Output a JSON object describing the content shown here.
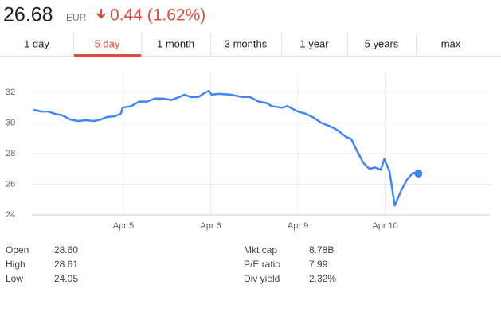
{
  "header": {
    "price": "26.68",
    "currency": "EUR",
    "change": "0.44 (1.62%)"
  },
  "tabs": {
    "items": [
      "1 day",
      "5 day",
      "1 month",
      "3 months",
      "1 year",
      "5 years",
      "max"
    ],
    "selected": 1
  },
  "chart_data": {
    "type": "line",
    "x": [
      -0.03,
      0.06,
      0.14,
      0.21,
      0.3,
      0.39,
      0.48,
      0.57,
      0.66,
      0.74,
      0.81,
      0.9,
      0.97,
      0.99,
      1.09,
      1.18,
      1.27,
      1.36,
      1.45,
      1.55,
      1.64,
      1.7,
      1.77,
      1.86,
      1.94,
      1.98,
      2.01,
      2.09,
      2.23,
      2.36,
      2.45,
      2.55,
      2.64,
      2.7,
      2.82,
      2.88,
      3.0,
      3.09,
      3.18,
      3.27,
      3.36,
      3.45,
      3.55,
      3.61,
      3.68,
      3.75,
      3.82,
      3.88,
      3.95,
      3.99,
      4.05,
      4.11,
      4.18,
      4.25,
      4.32,
      4.38
    ],
    "series": [
      {
        "color": "#4285f4",
        "values": [
          30.86,
          30.75,
          30.75,
          30.6,
          30.5,
          30.23,
          30.13,
          30.18,
          30.13,
          30.23,
          30.39,
          30.44,
          30.6,
          31.0,
          31.1,
          31.4,
          31.4,
          31.6,
          31.6,
          31.5,
          31.7,
          31.85,
          31.7,
          31.7,
          32.0,
          32.1,
          31.85,
          31.9,
          31.85,
          31.7,
          31.7,
          31.4,
          31.3,
          31.1,
          31.0,
          31.1,
          30.75,
          30.6,
          30.35,
          30.0,
          29.8,
          29.55,
          29.1,
          28.95,
          28.15,
          27.4,
          27.0,
          27.1,
          26.95,
          27.65,
          26.85,
          24.6,
          25.55,
          26.3,
          26.75,
          26.7
        ]
      }
    ],
    "xlim": [
      -0.05,
      5.2
    ],
    "xticks": [
      {
        "value": 1,
        "label": "Apr 5"
      },
      {
        "value": 2,
        "label": "Apr 6"
      },
      {
        "value": 3,
        "label": "Apr 9"
      },
      {
        "value": 4,
        "label": "Apr 10"
      }
    ],
    "ylim": [
      24,
      33
    ],
    "yticks": [
      24,
      26,
      28,
      30,
      32
    ],
    "grid": true,
    "last_point_marker": true
  },
  "stats": {
    "left": [
      [
        "Open",
        "28.60"
      ],
      [
        "High",
        "28.61"
      ],
      [
        "Low",
        "24.05"
      ]
    ],
    "right": [
      [
        "Mkt cap",
        "8.78B"
      ],
      [
        "P/E ratio",
        "7.99"
      ],
      [
        "Div yield",
        "2.32%"
      ]
    ]
  }
}
